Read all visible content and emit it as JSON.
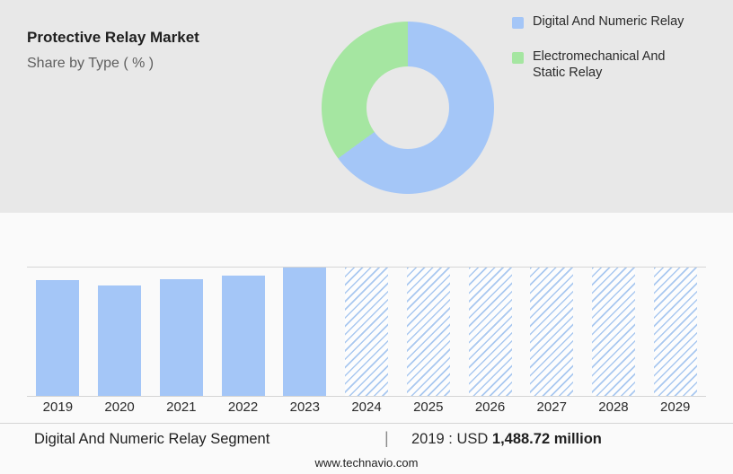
{
  "header": {
    "title": "Protective Relay Market",
    "subtitle": "Share by Type ( % )"
  },
  "chart_data": [
    {
      "type": "pie",
      "title": "Share by Type ( % )",
      "labels": [
        "Digital And Numeric Relay",
        "Electromechanical And Static Relay"
      ],
      "values": [
        65,
        35
      ],
      "colors": [
        "#a4c6f7",
        "#a5e6a1"
      ],
      "style": "donut",
      "legend_position": "right",
      "note": "no numeric labels shown; slice sizes estimated from arc angles"
    },
    {
      "type": "bar",
      "categories": [
        "2019",
        "2020",
        "2021",
        "2022",
        "2023",
        "2024",
        "2025",
        "2026",
        "2027",
        "2028",
        "2029"
      ],
      "series": [
        {
          "name": "Market size (relative bar height %, value axis not shown)",
          "values": [
            90,
            86,
            91,
            94,
            100,
            100,
            100,
            100,
            100,
            100,
            100
          ]
        }
      ],
      "bar_styles": [
        "solid",
        "solid",
        "solid",
        "solid",
        "solid",
        "hatched",
        "hatched",
        "hatched",
        "hatched",
        "hatched",
        "hatched"
      ],
      "color": "#a4c6f7",
      "hatch_color": "#a9c8f0",
      "xlabel": "",
      "ylabel": "",
      "grid": "top gridline and baseline only",
      "note": "2024-2029 are forecast years shown with diagonal hatching"
    }
  ],
  "footer": {
    "segment_label": "Digital And Numeric Relay Segment",
    "separator": "|",
    "value_prefix": "2019 : USD",
    "value_bold": "1,488.72 million",
    "website": "www.technavio.com"
  },
  "colors": {
    "top_background": "#e8e8e8",
    "bottom_background": "#fafafa",
    "blue": "#a4c6f7",
    "green": "#a5e6a1",
    "gridline": "#d5d5d5"
  }
}
